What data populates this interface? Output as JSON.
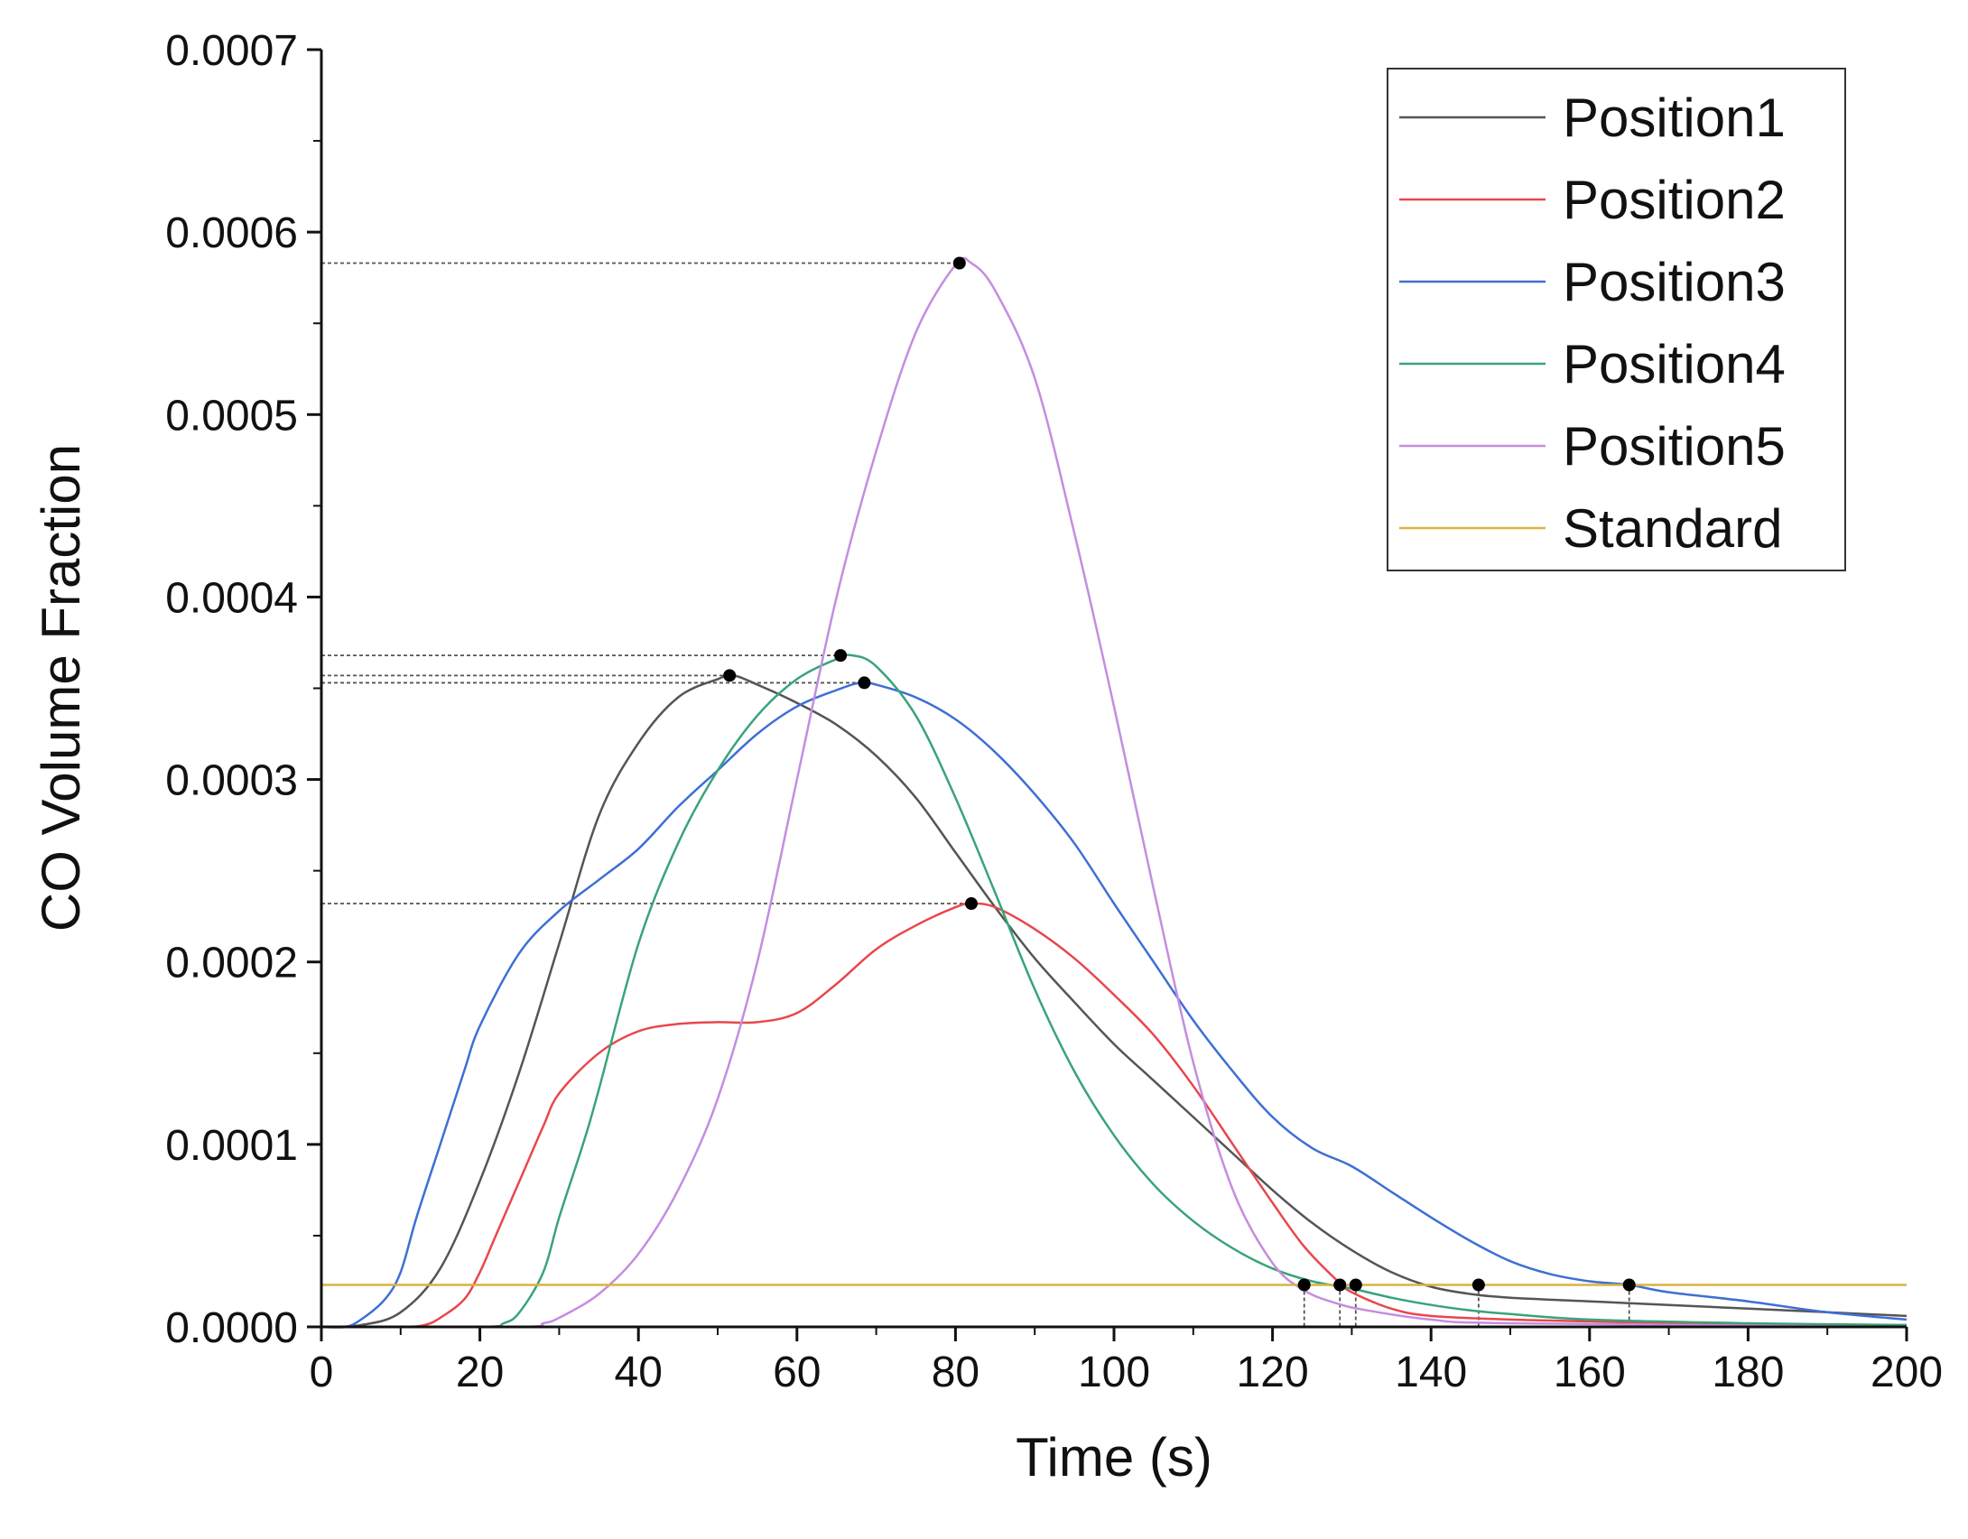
{
  "chart_data": {
    "type": "line",
    "title": "",
    "xlabel": "Time (s)",
    "ylabel": "CO  Volume Fraction",
    "xlim": [
      0,
      200
    ],
    "ylim": [
      0,
      0.0007
    ],
    "xticks": [
      0,
      20,
      40,
      60,
      80,
      100,
      120,
      140,
      160,
      180,
      200
    ],
    "xtick_labels": [
      "0",
      "20",
      "40",
      "60",
      "80",
      "100",
      "120",
      "140",
      "160",
      "180",
      "200"
    ],
    "yticks": [
      0,
      0.0001,
      0.0002,
      0.0003,
      0.0004,
      0.0005,
      0.0006,
      0.0007
    ],
    "ytick_labels": [
      "0.0000",
      "0.0001",
      "0.0002",
      "0.0003",
      "0.0004",
      "0.0005",
      "0.0006",
      "0.0007"
    ],
    "legend_position": "top-right",
    "series": [
      {
        "name": "Position1",
        "color": "#555555",
        "points": [
          [
            0,
            0
          ],
          [
            5,
            1e-06
          ],
          [
            10,
            8e-06
          ],
          [
            15,
            3.2e-05
          ],
          [
            20,
            8e-05
          ],
          [
            25,
            0.00014
          ],
          [
            30,
            0.00021
          ],
          [
            35,
            0.00028
          ],
          [
            40,
            0.00032
          ],
          [
            45,
            0.000345
          ],
          [
            50,
            0.000355
          ],
          [
            52,
            0.000357
          ],
          [
            55,
            0.000352
          ],
          [
            60,
            0.000342
          ],
          [
            65,
            0.00033
          ],
          [
            70,
            0.000313
          ],
          [
            75,
            0.00029
          ],
          [
            80,
            0.00026
          ],
          [
            85,
            0.00023
          ],
          [
            90,
            0.000202
          ],
          [
            95,
            0.000178
          ],
          [
            100,
            0.000155
          ],
          [
            105,
            0.000135
          ],
          [
            110,
            0.000115
          ],
          [
            115,
            9.5e-05
          ],
          [
            120,
            7.5e-05
          ],
          [
            125,
            5.7e-05
          ],
          [
            130,
            4.2e-05
          ],
          [
            135,
            3e-05
          ],
          [
            140,
            2.2e-05
          ],
          [
            145,
            1.8e-05
          ],
          [
            150,
            1.6e-05
          ],
          [
            160,
            1.4e-05
          ],
          [
            170,
            1.2e-05
          ],
          [
            180,
            1e-05
          ],
          [
            190,
            8e-06
          ],
          [
            200,
            6e-06
          ]
        ]
      },
      {
        "name": "Position2",
        "color": "#e8474c",
        "points": [
          [
            0,
            0
          ],
          [
            10,
            0
          ],
          [
            13,
            1e-06
          ],
          [
            15,
            5e-06
          ],
          [
            18,
            1.5e-05
          ],
          [
            20,
            3e-05
          ],
          [
            22,
            5e-05
          ],
          [
            25,
            8e-05
          ],
          [
            28,
            0.00011
          ],
          [
            30,
            0.000128
          ],
          [
            35,
            0.00015
          ],
          [
            40,
            0.000162
          ],
          [
            45,
            0.000166
          ],
          [
            50,
            0.000167
          ],
          [
            55,
            0.000167
          ],
          [
            60,
            0.000172
          ],
          [
            65,
            0.000188
          ],
          [
            70,
            0.000207
          ],
          [
            75,
            0.00022
          ],
          [
            80,
            0.00023
          ],
          [
            82,
            0.000232
          ],
          [
            85,
            0.00023
          ],
          [
            90,
            0.000218
          ],
          [
            95,
            0.000202
          ],
          [
            100,
            0.000182
          ],
          [
            105,
            0.00016
          ],
          [
            110,
            0.000132
          ],
          [
            115,
            0.0001
          ],
          [
            120,
            6.8e-05
          ],
          [
            124,
            4.4e-05
          ],
          [
            128,
            2.6e-05
          ],
          [
            130,
            1.9e-05
          ],
          [
            135,
            1e-05
          ],
          [
            140,
            6e-06
          ],
          [
            150,
            4e-06
          ],
          [
            160,
            3e-06
          ],
          [
            170,
            2e-06
          ],
          [
            180,
            1.5e-06
          ],
          [
            200,
            1e-06
          ]
        ]
      },
      {
        "name": "Position3",
        "color": "#3e6fd4",
        "points": [
          [
            0,
            0
          ],
          [
            3,
            0
          ],
          [
            5,
            4e-06
          ],
          [
            8,
            1.5e-05
          ],
          [
            10,
            3e-05
          ],
          [
            12,
            6e-05
          ],
          [
            15,
            0.0001
          ],
          [
            18,
            0.00014
          ],
          [
            20,
            0.000165
          ],
          [
            25,
            0.000205
          ],
          [
            30,
            0.000228
          ],
          [
            35,
            0.000245
          ],
          [
            40,
            0.000262
          ],
          [
            45,
            0.000285
          ],
          [
            50,
            0.000305
          ],
          [
            55,
            0.000325
          ],
          [
            60,
            0.00034
          ],
          [
            65,
            0.000349
          ],
          [
            68,
            0.000353
          ],
          [
            70,
            0.000352
          ],
          [
            75,
            0.000345
          ],
          [
            80,
            0.000333
          ],
          [
            85,
            0.000315
          ],
          [
            90,
            0.000292
          ],
          [
            95,
            0.000265
          ],
          [
            100,
            0.000232
          ],
          [
            105,
            0.0002
          ],
          [
            110,
            0.000168
          ],
          [
            115,
            0.00014
          ],
          [
            120,
            0.000115
          ],
          [
            125,
            9.8e-05
          ],
          [
            130,
            8.8e-05
          ],
          [
            135,
            7.4e-05
          ],
          [
            140,
            6e-05
          ],
          [
            145,
            4.7e-05
          ],
          [
            150,
            3.6e-05
          ],
          [
            155,
            2.9e-05
          ],
          [
            160,
            2.5e-05
          ],
          [
            165,
            2.3e-05
          ],
          [
            170,
            1.9e-05
          ],
          [
            180,
            1.4e-05
          ],
          [
            190,
            8e-06
          ],
          [
            200,
            4e-06
          ]
        ]
      },
      {
        "name": "Position4",
        "color": "#3aa37a",
        "points": [
          [
            0,
            0
          ],
          [
            20,
            0
          ],
          [
            23,
            2e-06
          ],
          [
            25,
            8e-06
          ],
          [
            28,
            3e-05
          ],
          [
            30,
            6e-05
          ],
          [
            33,
            0.0001
          ],
          [
            35,
            0.00013
          ],
          [
            40,
            0.00021
          ],
          [
            45,
            0.000265
          ],
          [
            50,
            0.000305
          ],
          [
            55,
            0.000335
          ],
          [
            60,
            0.000355
          ],
          [
            65,
            0.000366
          ],
          [
            67,
            0.000368
          ],
          [
            70,
            0.000362
          ],
          [
            75,
            0.000335
          ],
          [
            80,
            0.00029
          ],
          [
            85,
            0.000238
          ],
          [
            90,
            0.000185
          ],
          [
            95,
            0.00014
          ],
          [
            100,
            0.000105
          ],
          [
            105,
            7.8e-05
          ],
          [
            110,
            5.8e-05
          ],
          [
            115,
            4.3e-05
          ],
          [
            120,
            3.2e-05
          ],
          [
            125,
            2.5e-05
          ],
          [
            130,
            2.1e-05
          ],
          [
            135,
            1.6e-05
          ],
          [
            140,
            1.2e-05
          ],
          [
            145,
            9e-06
          ],
          [
            150,
            7e-06
          ],
          [
            160,
            4e-06
          ],
          [
            180,
            2e-06
          ],
          [
            200,
            1e-06
          ]
        ]
      },
      {
        "name": "Position5",
        "color": "#c58de0",
        "points": [
          [
            0,
            0
          ],
          [
            25,
            0
          ],
          [
            28,
            2e-06
          ],
          [
            30,
            5e-06
          ],
          [
            35,
            1.8e-05
          ],
          [
            40,
            4e-05
          ],
          [
            45,
            7.5e-05
          ],
          [
            50,
            0.000125
          ],
          [
            55,
            0.0002
          ],
          [
            60,
            0.0003
          ],
          [
            65,
            0.0004
          ],
          [
            70,
            0.00048
          ],
          [
            75,
            0.000545
          ],
          [
            80,
            0.000582
          ],
          [
            82,
            0.000583
          ],
          [
            85,
            0.000568
          ],
          [
            90,
            0.00052
          ],
          [
            95,
            0.000435
          ],
          [
            100,
            0.00034
          ],
          [
            105,
            0.00024
          ],
          [
            110,
            0.000145
          ],
          [
            115,
            7.5e-05
          ],
          [
            120,
            3.5e-05
          ],
          [
            124,
            2e-05
          ],
          [
            128,
            1.3e-05
          ],
          [
            132,
            9e-06
          ],
          [
            140,
            4e-06
          ],
          [
            150,
            2e-06
          ],
          [
            200,
            0
          ]
        ]
      },
      {
        "name": "Standard",
        "color": "#d9b43e",
        "points": [
          [
            0,
            2.3e-05
          ],
          [
            200,
            2.3e-05
          ]
        ]
      }
    ],
    "peak_markers": [
      {
        "x": 51.5,
        "y": 0.000357
      },
      {
        "x": 65.5,
        "y": 0.000368
      },
      {
        "x": 68.5,
        "y": 0.000353
      },
      {
        "x": 80.5,
        "y": 0.000583
      },
      {
        "x": 82,
        "y": 0.000232
      }
    ],
    "threshold_markers": [
      {
        "x": 124,
        "y": 2.3e-05
      },
      {
        "x": 128.5,
        "y": 2.3e-05
      },
      {
        "x": 130.5,
        "y": 2.3e-05
      },
      {
        "x": 146,
        "y": 2.3e-05
      },
      {
        "x": 165,
        "y": 2.3e-05
      }
    ]
  }
}
